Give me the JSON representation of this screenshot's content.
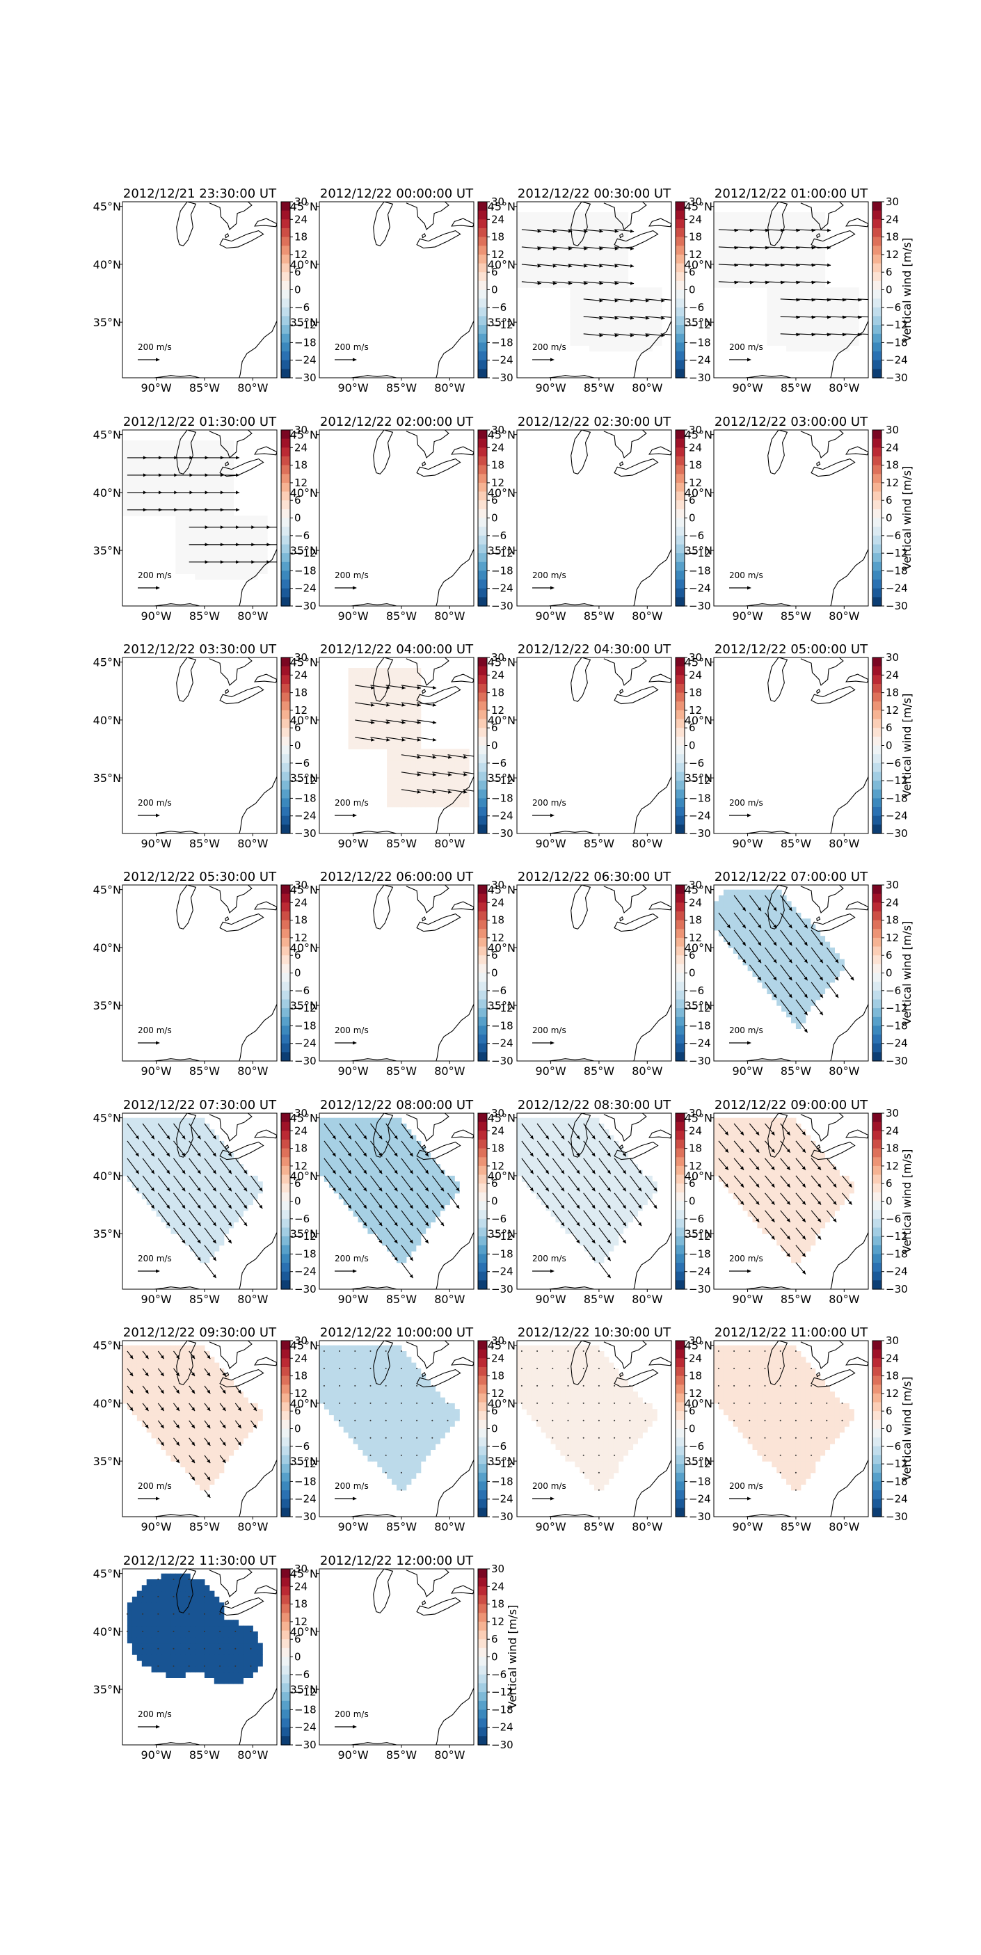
{
  "figure": {
    "colorbar_label": "Vertical wind [m/s]",
    "colorbar_ticks": [
      "30",
      "24",
      "18",
      "12",
      "6",
      "0",
      "−6",
      "−12",
      "−18",
      "−24",
      "−30"
    ],
    "x_tick_labels": [
      "90°W",
      "85°W",
      "80°W"
    ],
    "y_tick_labels": [
      "45°N",
      "40°N",
      "35°N"
    ],
    "arrow_key_label": "200 m/s",
    "colormap": [
      "#053061",
      "#2166ac",
      "#4393c3",
      "#92c5de",
      "#d1e5f0",
      "#f7f7f7",
      "#fddbc7",
      "#f4a582",
      "#d6604d",
      "#b2182b",
      "#67001f"
    ]
  },
  "chart_data": {
    "type": "heatmap",
    "colorbar": {
      "label": "Vertical wind [m/s]",
      "range": [
        -30,
        30
      ],
      "ticks": [
        30,
        24,
        18,
        12,
        6,
        0,
        -6,
        -12,
        -18,
        -24,
        -30
      ]
    },
    "x_ticks": [
      -90,
      -85,
      -80
    ],
    "y_ticks": [
      45,
      40,
      35
    ],
    "panels": [
      {
        "title": "2012/12/21 23:30:00 UT",
        "region": null,
        "w": null,
        "u": null,
        "v": null
      },
      {
        "title": "2012/12/22 00:00:00 UT",
        "region": null,
        "w": null,
        "u": null,
        "v": null
      },
      {
        "title": "2012/12/22 00:30:00 UT",
        "region": "band",
        "w": 0,
        "u": 1,
        "v": -0.1
      },
      {
        "title": "2012/12/22 01:00:00 UT",
        "region": "band",
        "w": 0,
        "u": 1,
        "v": -0.05
      },
      {
        "title": "2012/12/22 01:30:00 UT",
        "region": "band",
        "w": 0,
        "u": 1,
        "v": 0
      },
      {
        "title": "2012/12/22 02:00:00 UT",
        "region": null,
        "w": null,
        "u": null,
        "v": null
      },
      {
        "title": "2012/12/22 02:30:00 UT",
        "region": null,
        "w": null,
        "u": null,
        "v": null
      },
      {
        "title": "2012/12/22 03:00:00 UT",
        "region": null,
        "w": null,
        "u": null,
        "v": null
      },
      {
        "title": "2012/12/22 03:30:00 UT",
        "region": null,
        "w": null,
        "u": null,
        "v": null
      },
      {
        "title": "2012/12/22 04:00:00 UT",
        "region": "dog",
        "w": 2,
        "u": 1,
        "v": -0.15
      },
      {
        "title": "2012/12/22 04:30:00 UT",
        "region": null,
        "w": null,
        "u": null,
        "v": null
      },
      {
        "title": "2012/12/22 05:00:00 UT",
        "region": null,
        "w": null,
        "u": null,
        "v": null
      },
      {
        "title": "2012/12/22 05:30:00 UT",
        "region": null,
        "w": null,
        "u": null,
        "v": null
      },
      {
        "title": "2012/12/22 06:00:00 UT",
        "region": null,
        "w": null,
        "u": null,
        "v": null
      },
      {
        "title": "2012/12/22 06:30:00 UT",
        "region": null,
        "w": null,
        "u": null,
        "v": null
      },
      {
        "title": "2012/12/22 07:00:00 UT",
        "region": "diag",
        "w": -9,
        "u": 0.6,
        "v": -0.8
      },
      {
        "title": "2012/12/22 07:30:00 UT",
        "region": "diag_wide",
        "w": -6,
        "u": 0.6,
        "v": -0.8
      },
      {
        "title": "2012/12/22 08:00:00 UT",
        "region": "diag_wide",
        "w": -10,
        "u": 0.6,
        "v": -0.8
      },
      {
        "title": "2012/12/22 08:30:00 UT",
        "region": "diag_wide",
        "w": -4,
        "u": 0.6,
        "v": -0.8
      },
      {
        "title": "2012/12/22 09:00:00 UT",
        "region": "diag_wide",
        "w": 4,
        "u": 0.5,
        "v": -0.6
      },
      {
        "title": "2012/12/22 09:30:00 UT",
        "region": "diag_wide",
        "w": 4,
        "u": 0.3,
        "v": -0.4
      },
      {
        "title": "2012/12/22 10:00:00 UT",
        "region": "diag_wide",
        "w": -8,
        "u": 0,
        "v": 0
      },
      {
        "title": "2012/12/22 10:30:00 UT",
        "region": "diag_wide",
        "w": 2,
        "u": 0,
        "v": 0
      },
      {
        "title": "2012/12/22 11:00:00 UT",
        "region": "diag_wide",
        "w": 4,
        "u": 0,
        "v": 0
      },
      {
        "title": "2012/12/22 11:30:00 UT",
        "region": "blob",
        "w": -26,
        "u": 0,
        "v": 0
      },
      {
        "title": "2012/12/22 12:00:00 UT",
        "region": null,
        "w": null,
        "u": null,
        "v": null
      }
    ]
  }
}
